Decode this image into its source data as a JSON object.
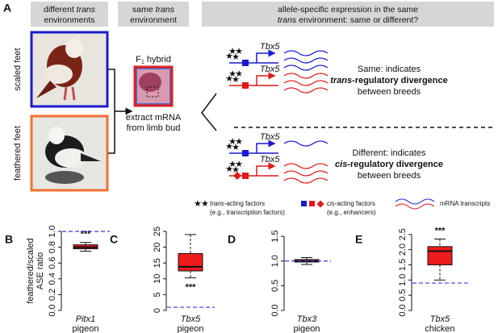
{
  "panel_a": {
    "label": "A",
    "headers": [
      [
        [
          "different ",
          "trans"
        ],
        [
          "environments"
        ]
      ],
      [
        [
          "same ",
          "trans"
        ],
        [
          "environment"
        ]
      ],
      [
        [
          "allele-specific expression in the same"
        ],
        [
          "trans",
          " environment: same or different?"
        ]
      ]
    ],
    "side_labels": [
      "scaled feet",
      "feathered feet"
    ],
    "hybrid": [
      "F",
      "1",
      " hybrid"
    ],
    "extract": [
      "extract mRNA",
      "from limb bud"
    ],
    "gene": "Tbx5",
    "same": [
      [
        "Same: indicates"
      ],
      [
        "trans",
        "-regulatory divergence"
      ],
      [
        "between breeds"
      ]
    ],
    "different": [
      [
        "Different: indicates"
      ],
      [
        "cis",
        "-regulatory divergence"
      ],
      [
        "between breeds"
      ]
    ],
    "legend": {
      "trans": [
        [
          "trans",
          "-acting factors"
        ],
        [
          "(e.g., transcription factors)"
        ]
      ],
      "cis": [
        [
          "cis",
          "-acting factors"
        ],
        [
          "(e.g., enhancers)"
        ]
      ],
      "mrna": "mRNA transcripts"
    }
  },
  "chart_data": [
    {
      "type": "box",
      "panel": "B",
      "ylabel": [
        "feathered/scaled",
        "ASE ratio"
      ],
      "categories": [
        "Pitx1"
      ],
      "x_label": "pigeon",
      "boxes": [
        {
          "whislo": 0.75,
          "q1": 0.78,
          "med": 0.8,
          "q3": 0.83,
          "whishi": 0.86
        }
      ],
      "reference_line": 1,
      "annotation": "***",
      "annotation_position": "above",
      "color": "#ee1c1c",
      "ylim": [
        0,
        1
      ],
      "yticks": [
        {
          "value": 0,
          "label": "0.0"
        },
        0.2,
        0.4,
        0.6,
        0.8,
        {
          "value": 1,
          "label": "1.0"
        }
      ]
    },
    {
      "type": "box",
      "panel": "C",
      "categories": [
        "Tbx5"
      ],
      "x_label": "pigeon",
      "boxes": [
        {
          "whislo": 10.3,
          "q1": 12.5,
          "med": 13.8,
          "q3": 18,
          "whishi": 24
        }
      ],
      "reference_line": 1,
      "annotation": "***",
      "annotation_position": "below",
      "color": "#ee1c1c",
      "ylim": [
        0,
        25
      ],
      "yticks": [
        0,
        5,
        10,
        15,
        20,
        25
      ]
    },
    {
      "type": "box",
      "panel": "D",
      "categories": [
        "Tbx3"
      ],
      "x_label": "pigeon",
      "boxes": [
        {
          "whislo": 0.93,
          "q1": 0.98,
          "med": 1.0,
          "q3": 1.03,
          "whishi": 1.07
        }
      ],
      "reference_line": 1,
      "color": "#ee1c1c",
      "ylim": [
        0,
        1.6
      ],
      "yticks": [
        {
          "value": 0,
          "label": "0.0"
        },
        0.5,
        {
          "value": 1,
          "label": "1.0"
        },
        1.5
      ]
    },
    {
      "type": "box",
      "panel": "E",
      "categories": [
        "Tbx5"
      ],
      "x_label": "chicken",
      "boxes": [
        {
          "whislo": 1.0,
          "q1": 1.5,
          "med": 1.95,
          "q3": 2.1,
          "whishi": 2.35
        }
      ],
      "reference_line": 0.9,
      "annotation": "***",
      "annotation_position": "above",
      "color": "#ee1c1c",
      "ylim": [
        0,
        2.6
      ],
      "yticks": [
        {
          "value": 0,
          "label": "0.0"
        },
        0.5,
        {
          "value": 1,
          "label": "1.0"
        },
        1.5,
        {
          "value": 2,
          "label": "2.0"
        },
        2.5
      ]
    }
  ]
}
